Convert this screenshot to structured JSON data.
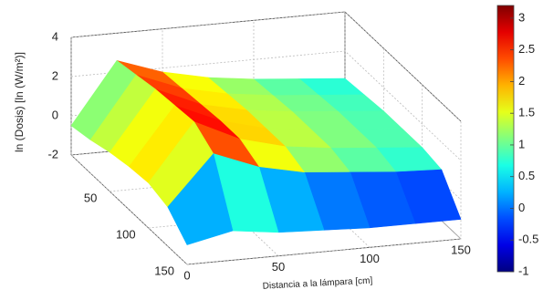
{
  "chart_data": {
    "type": "surface",
    "z_label": "ln (Dosis) [ln (W/m²)]",
    "x_label": "Distancia a la lámpara [cm]",
    "x": [
      0,
      25,
      50,
      75,
      100,
      125,
      150
    ],
    "y": [
      0,
      25,
      50,
      75,
      100,
      125,
      150
    ],
    "z": [
      [
        -0.5,
        2.6,
        1.8,
        1.3,
        1.0,
        0.8,
        0.6
      ],
      [
        -0.3,
        2.8,
        1.9,
        1.4,
        1.1,
        0.9,
        0.7
      ],
      [
        0.0,
        3.0,
        2.0,
        1.5,
        1.2,
        1.0,
        0.8
      ],
      [
        0.2,
        3.1,
        2.1,
        1.5,
        1.2,
        1.0,
        0.8
      ],
      [
        0.3,
        3.2,
        2.1,
        1.5,
        1.2,
        1.0,
        0.8
      ],
      [
        0.0,
        2.5,
        1.6,
        1.1,
        0.9,
        0.7,
        0.6
      ],
      [
        -1.0,
        -0.5,
        -0.8,
        -0.9,
        -1.0,
        -1.0,
        -1.0
      ]
    ],
    "xlim": [
      0,
      150
    ],
    "ylim": [
      0,
      150
    ],
    "zlim": [
      -2,
      4
    ],
    "xticks": [
      0,
      50,
      100,
      150
    ],
    "yticks": [
      50,
      100,
      150
    ],
    "zticks": [
      -2,
      0,
      2,
      4
    ],
    "colormap": "jet",
    "clim": [
      -1,
      3.2
    ],
    "cticks": [
      -1,
      -0.5,
      0,
      0.5,
      1,
      1.5,
      2,
      2.5,
      3
    ],
    "grid": true
  }
}
